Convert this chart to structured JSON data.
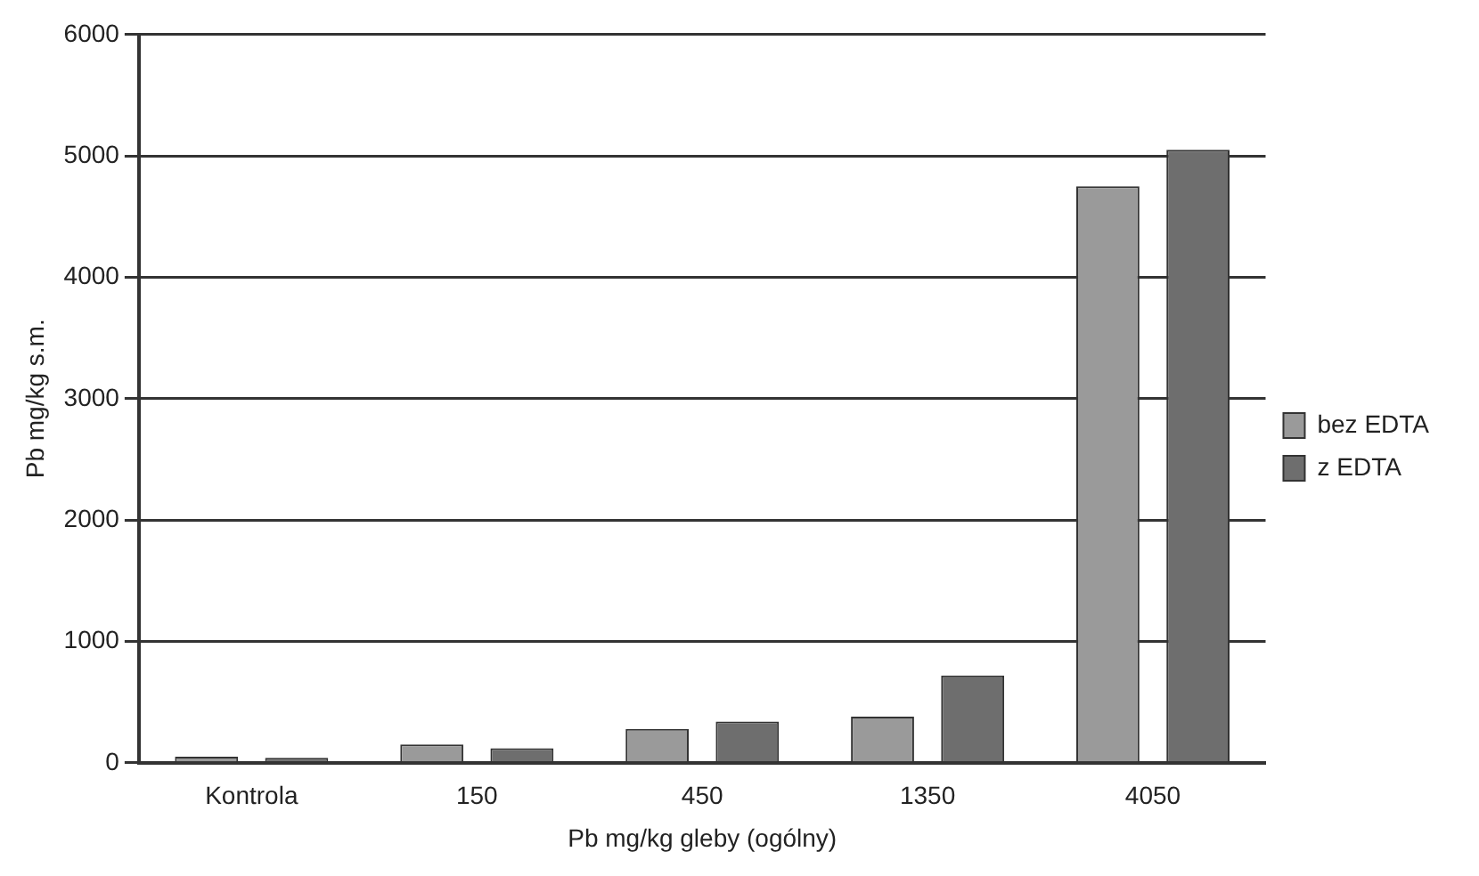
{
  "chart_data": {
    "type": "bar",
    "xlabel": "Pb mg/kg gleby (ogólny)",
    "ylabel": "Pb mg/kg s.m.",
    "categories": [
      "Kontrola",
      "150",
      "450",
      "1350",
      "4050"
    ],
    "series": [
      {
        "name": "bez EDTA",
        "color": "#9a9a9a",
        "values": [
          50,
          150,
          280,
          380,
          4750
        ]
      },
      {
        "name": "z EDTA",
        "color": "#6e6e6e",
        "values": [
          40,
          120,
          340,
          720,
          5050
        ]
      }
    ],
    "ylim": [
      0,
      6000
    ],
    "yticks": [
      0,
      1000,
      2000,
      3000,
      4000,
      5000,
      6000
    ],
    "grid": "y",
    "legend": "right"
  }
}
